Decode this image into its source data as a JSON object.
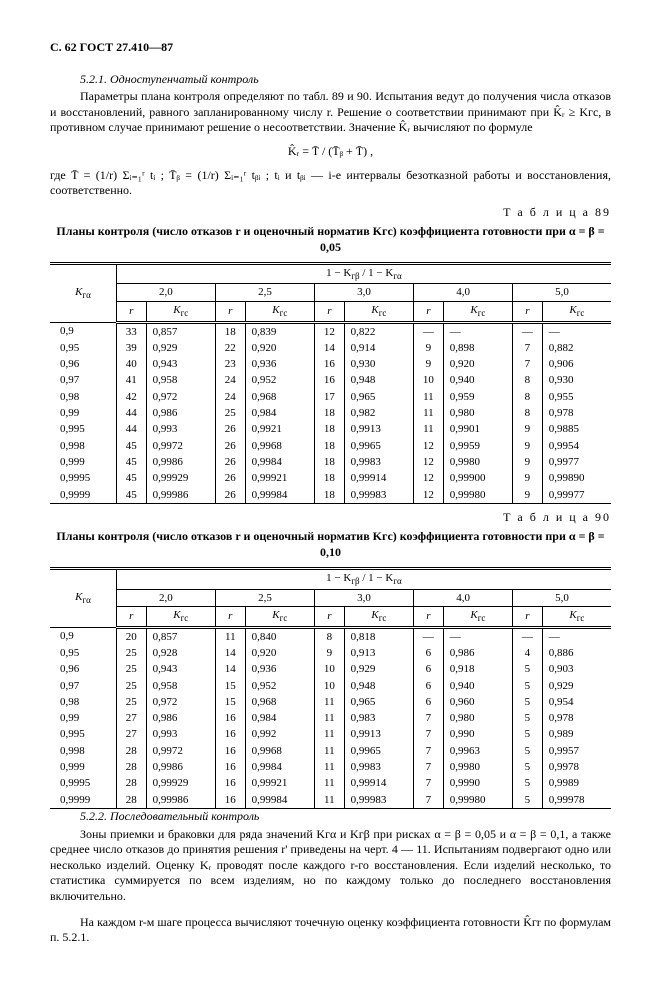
{
  "header": "С. 62 ГОСТ 27.410—87",
  "section521_title": "5.2.1. Одноступенчатый контроль",
  "para1": "Параметры плана контроля определяют по табл. 89 и 90. Испытания ведут до получения числа отказов и восстановлений, равного запланированному числу r. Решение о соответствии принимают при K̂ᵣ ≥ Kгс, в противном случае принимают решение о несоответствии. Значение K̂ᵣ вычисляют по формуле",
  "formula": "K̂ᵣ = T̄ / (T̄ᵦ + T̄) ,",
  "para2": "где  T̄ = (1/r) Σᵢ₌₁ʳ tᵢ ;  T̄ᵦ = (1/r) Σᵢ₌₁ʳ tᵦᵢ ;  tᵢ  и  tᵦᵢ  — i-е  интервалы  безотказной  работы  и  восстановления,   соответственно.",
  "table89_label": "Т а б л и ц а   89",
  "table89_title": "Планы контроля (число отказов r и оценочный норматив Kгс) коэффициента готовности при α = β = 0,05",
  "header_ratio_prefix": "1 − K",
  "header_ratio_sub1": "гβ",
  "header_ratio_mid": " / 1 − K",
  "header_ratio_sub2": "гα",
  "header_Ka": "K",
  "header_Ka_sub": "гα",
  "header_r": "r",
  "header_Kgc": "K",
  "header_Kgc_sub": "гс",
  "ratios": [
    "2,0",
    "2,5",
    "3,0",
    "4,0",
    "5,0"
  ],
  "table89_rows": [
    {
      "ka": "0,9",
      "v": [
        [
          "33",
          "0,857"
        ],
        [
          "18",
          "0,839"
        ],
        [
          "12",
          "0,822"
        ],
        [
          "—",
          "—"
        ],
        [
          "—",
          "—"
        ]
      ]
    },
    {
      "ka": "0,95",
      "v": [
        [
          "39",
          "0,929"
        ],
        [
          "22",
          "0,920"
        ],
        [
          "14",
          "0,914"
        ],
        [
          "9",
          "0,898"
        ],
        [
          "7",
          "0,882"
        ]
      ]
    },
    {
      "ka": "0,96",
      "v": [
        [
          "40",
          "0,943"
        ],
        [
          "23",
          "0,936"
        ],
        [
          "16",
          "0,930"
        ],
        [
          "9",
          "0,920"
        ],
        [
          "7",
          "0,906"
        ]
      ]
    },
    {
      "ka": "0,97",
      "v": [
        [
          "41",
          "0,958"
        ],
        [
          "24",
          "0,952"
        ],
        [
          "16",
          "0,948"
        ],
        [
          "10",
          "0,940"
        ],
        [
          "8",
          "0,930"
        ]
      ]
    },
    {
      "ka": "0,98",
      "v": [
        [
          "42",
          "0,972"
        ],
        [
          "24",
          "0,968"
        ],
        [
          "17",
          "0,965"
        ],
        [
          "11",
          "0,959"
        ],
        [
          "8",
          "0,955"
        ]
      ]
    },
    {
      "ka": "0,99",
      "v": [
        [
          "44",
          "0,986"
        ],
        [
          "25",
          "0,984"
        ],
        [
          "18",
          "0,982"
        ],
        [
          "11",
          "0,980"
        ],
        [
          "8",
          "0,978"
        ]
      ]
    },
    {
      "ka": "0,995",
      "v": [
        [
          "44",
          "0,993"
        ],
        [
          "26",
          "0,9921"
        ],
        [
          "18",
          "0,9913"
        ],
        [
          "11",
          "0,9901"
        ],
        [
          "9",
          "0,9885"
        ]
      ]
    },
    {
      "ka": "0,998",
      "v": [
        [
          "45",
          "0,9972"
        ],
        [
          "26",
          "0,9968"
        ],
        [
          "18",
          "0,9965"
        ],
        [
          "12",
          "0,9959"
        ],
        [
          "9",
          "0,9954"
        ]
      ]
    },
    {
      "ka": "0,999",
      "v": [
        [
          "45",
          "0,9986"
        ],
        [
          "26",
          "0,9984"
        ],
        [
          "18",
          "0,9983"
        ],
        [
          "12",
          "0,9980"
        ],
        [
          "9",
          "0,9977"
        ]
      ]
    },
    {
      "ka": "0,9995",
      "v": [
        [
          "45",
          "0,99929"
        ],
        [
          "26",
          "0,99921"
        ],
        [
          "18",
          "0,99914"
        ],
        [
          "12",
          "0,99900"
        ],
        [
          "9",
          "0,99890"
        ]
      ]
    },
    {
      "ka": "0,9999",
      "v": [
        [
          "45",
          "0,99986"
        ],
        [
          "26",
          "0,99984"
        ],
        [
          "18",
          "0,99983"
        ],
        [
          "12",
          "0,99980"
        ],
        [
          "9",
          "0,99977"
        ]
      ]
    }
  ],
  "table90_label": "Т а б л и ц а   90",
  "table90_title": "Планы контроля (число отказов r и оценочный норматив Kгс) коэффициента готовности при α = β = 0,10",
  "table90_rows": [
    {
      "ka": "0,9",
      "v": [
        [
          "20",
          "0,857"
        ],
        [
          "11",
          "0,840"
        ],
        [
          "8",
          "0,818"
        ],
        [
          "—",
          "—"
        ],
        [
          "—",
          "—"
        ]
      ]
    },
    {
      "ka": "0,95",
      "v": [
        [
          "25",
          "0,928"
        ],
        [
          "14",
          "0,920"
        ],
        [
          "9",
          "0,913"
        ],
        [
          "6",
          "0,986"
        ],
        [
          "4",
          "0,886"
        ]
      ]
    },
    {
      "ka": "0,96",
      "v": [
        [
          "25",
          "0,943"
        ],
        [
          "14",
          "0,936"
        ],
        [
          "10",
          "0,929"
        ],
        [
          "6",
          "0,918"
        ],
        [
          "5",
          "0,903"
        ]
      ]
    },
    {
      "ka": "0,97",
      "v": [
        [
          "25",
          "0,958"
        ],
        [
          "15",
          "0,952"
        ],
        [
          "10",
          "0,948"
        ],
        [
          "6",
          "0,940"
        ],
        [
          "5",
          "0,929"
        ]
      ]
    },
    {
      "ka": "0,98",
      "v": [
        [
          "25",
          "0,972"
        ],
        [
          "15",
          "0,968"
        ],
        [
          "11",
          "0,965"
        ],
        [
          "6",
          "0,960"
        ],
        [
          "5",
          "0,954"
        ]
      ]
    },
    {
      "ka": "0,99",
      "v": [
        [
          "27",
          "0,986"
        ],
        [
          "16",
          "0,984"
        ],
        [
          "11",
          "0,983"
        ],
        [
          "7",
          "0,980"
        ],
        [
          "5",
          "0,978"
        ]
      ]
    },
    {
      "ka": "0,995",
      "v": [
        [
          "27",
          "0,993"
        ],
        [
          "16",
          "0,992"
        ],
        [
          "11",
          "0,9913"
        ],
        [
          "7",
          "0,990"
        ],
        [
          "5",
          "0,989"
        ]
      ]
    },
    {
      "ka": "0,998",
      "v": [
        [
          "28",
          "0,9972"
        ],
        [
          "16",
          "0,9968"
        ],
        [
          "11",
          "0,9965"
        ],
        [
          "7",
          "0,9963"
        ],
        [
          "5",
          "0,9957"
        ]
      ]
    },
    {
      "ka": "0,999",
      "v": [
        [
          "28",
          "0,9986"
        ],
        [
          "16",
          "0,9984"
        ],
        [
          "11",
          "0,9983"
        ],
        [
          "7",
          "0,9980"
        ],
        [
          "5",
          "0,9978"
        ]
      ]
    },
    {
      "ka": "0,9995",
      "v": [
        [
          "28",
          "0,99929"
        ],
        [
          "16",
          "0,99921"
        ],
        [
          "11",
          "0,99914"
        ],
        [
          "7",
          "0,9990"
        ],
        [
          "5",
          "0,9989"
        ]
      ]
    },
    {
      "ka": "0,9999",
      "v": [
        [
          "28",
          "0,99986"
        ],
        [
          "16",
          "0,99984"
        ],
        [
          "11",
          "0,99983"
        ],
        [
          "7",
          "0,99980"
        ],
        [
          "5",
          "0,99978"
        ]
      ]
    }
  ],
  "section522_title": "5.2.2. Последовательный контроль",
  "para3": "Зоны приемки и браковки для ряда значений Kгα и Kгβ при рисках α = β = 0,05 и α = β = 0,1, а также среднее число отказов до принятия решения r' приведены на черт. 4 — 11. Испытаниям подвергают одно или несколько изделий. Оценку Kᵣ проводят после каждого r-го восстановления. Если изделий несколько, то статистика суммируется по всем изделиям, но по каждому только до последнего восстановления включительно.",
  "para4": "На каждом r-м шаге процесса вычисляют точечную оценку коэффициента готовности K̂гr по формулам п. 5.2.1."
}
